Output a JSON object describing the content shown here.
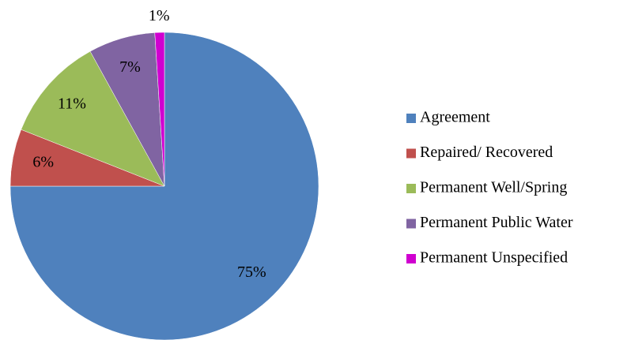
{
  "chart_data": {
    "type": "pie",
    "categories": [
      "Agreement",
      "Repaired/ Recovered",
      "Permanent Well/Spring",
      "Permanent Public Water",
      "Permanent Unspecified"
    ],
    "values": [
      75,
      6,
      11,
      7,
      1
    ],
    "value_labels": [
      "75%",
      "6%",
      "11%",
      "7%",
      "1%"
    ],
    "colors": [
      "#4f81bd",
      "#c0504d",
      "#9bbb59",
      "#8064a2",
      "#d000d0"
    ],
    "legend": "right"
  }
}
